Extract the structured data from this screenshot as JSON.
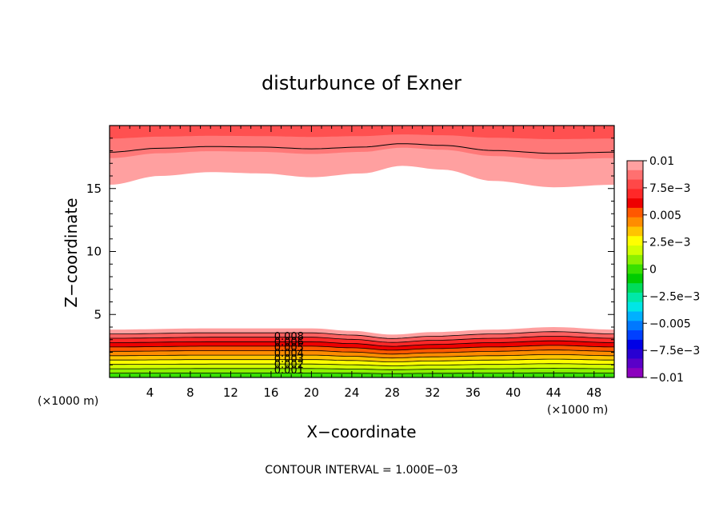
{
  "chart_data": {
    "type": "heatmap",
    "subtype": "filled-contour",
    "title": "disturbunce of Exner",
    "xlabel": "X−coordinate",
    "ylabel": "Z−coordinate",
    "x_unit_label": "(×1000 m)",
    "y_unit_label": "(×1000 m)",
    "xlim": [
      0,
      50
    ],
    "ylim": [
      0,
      20
    ],
    "x_ticks": [
      4,
      8,
      12,
      16,
      20,
      24,
      28,
      32,
      36,
      40,
      44,
      48
    ],
    "y_ticks": [
      5,
      10,
      15
    ],
    "footer": "CONTOUR INTERVAL = 1.000E−03",
    "contour_interval": 0.001,
    "colorbar": {
      "ticks": [
        "0.01",
        "7.5e−3",
        "0.005",
        "2.5e−3",
        "0",
        "−2.5e−3",
        "−0.005",
        "−7.5e−3",
        "−0.01"
      ],
      "levels_top_to_bottom": [
        "#ffa0a0",
        "#ff7070",
        "#ff4848",
        "#ff2828",
        "#ee0000",
        "#ff5800",
        "#ff8c00",
        "#ffc400",
        "#ffff00",
        "#d2ff00",
        "#8cf000",
        "#38e000",
        "#00cc00",
        "#00dc5a",
        "#00e8a8",
        "#00e6e6",
        "#00b0ff",
        "#0078ff",
        "#0040ff",
        "#0000e6",
        "#2800d2",
        "#5a00c8",
        "#8c00be"
      ]
    },
    "contour_labels": [
      "0.008",
      "0.006",
      "0.005",
      "0.004",
      "0.003",
      "0.002",
      "0.001"
    ],
    "upper_band": {
      "description_levels": [
        0.008,
        0.009,
        0.01
      ],
      "lower_edge_profile": [
        {
          "x": 0,
          "z": 15.3
        },
        {
          "x": 5,
          "z": 16.0
        },
        {
          "x": 10,
          "z": 16.3
        },
        {
          "x": 15,
          "z": 16.2
        },
        {
          "x": 20,
          "z": 15.9
        },
        {
          "x": 25,
          "z": 16.2
        },
        {
          "x": 29,
          "z": 16.8
        },
        {
          "x": 33,
          "z": 16.5
        },
        {
          "x": 38,
          "z": 15.6
        },
        {
          "x": 44,
          "z": 15.1
        },
        {
          "x": 50,
          "z": 15.3
        }
      ]
    },
    "lower_band": {
      "levels": [
        0.0,
        0.001,
        0.002,
        0.003,
        0.004,
        0.005,
        0.006,
        0.007,
        0.008,
        0.009
      ],
      "top_edge_profile": [
        {
          "x": 0,
          "z": 3.8
        },
        {
          "x": 10,
          "z": 3.9
        },
        {
          "x": 20,
          "z": 3.9
        },
        {
          "x": 24,
          "z": 3.7
        },
        {
          "x": 28,
          "z": 3.4
        },
        {
          "x": 32,
          "z": 3.6
        },
        {
          "x": 38,
          "z": 3.8
        },
        {
          "x": 44,
          "z": 4.0
        },
        {
          "x": 50,
          "z": 3.8
        }
      ]
    }
  }
}
